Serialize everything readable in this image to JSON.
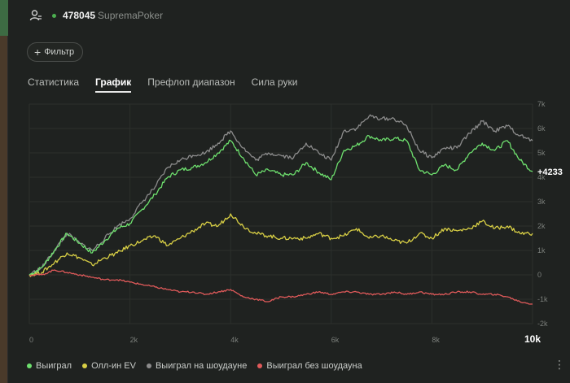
{
  "header": {
    "player_id": "478045",
    "site": "SupremaPoker"
  },
  "toolbar": {
    "filter_label": "Фильтр"
  },
  "tabs": [
    {
      "label": "Статистика",
      "active": false
    },
    {
      "label": "График",
      "active": true
    },
    {
      "label": "Префлоп диапазон",
      "active": false
    },
    {
      "label": "Сила руки",
      "active": false
    }
  ],
  "chart_data": {
    "type": "line",
    "x_ticks": [
      "0",
      "2k",
      "4k",
      "6k",
      "8k",
      "10k"
    ],
    "y_ticks": [
      "-2k",
      "-1k",
      "0",
      "1k",
      "2k",
      "3k",
      "4k",
      "5k",
      "6k",
      "7k"
    ],
    "xlim": [
      0,
      10000
    ],
    "ylim": [
      -2000,
      7000
    ],
    "end_label": "+4233",
    "x": [
      0,
      250,
      500,
      750,
      1000,
      1250,
      1500,
      1750,
      2000,
      2250,
      2500,
      2750,
      3000,
      3250,
      3500,
      3750,
      4000,
      4250,
      4500,
      4750,
      5000,
      5250,
      5500,
      5750,
      6000,
      6250,
      6500,
      6750,
      7000,
      7250,
      7500,
      7750,
      8000,
      8250,
      8500,
      8750,
      9000,
      9250,
      9500,
      9750,
      10000
    ],
    "series": [
      {
        "name": "Выиграл",
        "color": "#6ee06e",
        "values": [
          0,
          300,
          1000,
          1700,
          1300,
          900,
          1400,
          1900,
          2100,
          2700,
          3300,
          4000,
          4300,
          4400,
          4600,
          5000,
          5500,
          4800,
          4100,
          4300,
          4100,
          4100,
          4600,
          4200,
          3900,
          5100,
          5300,
          5700,
          5500,
          5600,
          5500,
          4300,
          4100,
          4500,
          4300,
          5000,
          5400,
          5100,
          5500,
          4700,
          4233
        ]
      },
      {
        "name": "Олл-ин EV",
        "color": "#d8cf45",
        "values": [
          0,
          100,
          500,
          900,
          700,
          400,
          700,
          900,
          1200,
          1400,
          1600,
          1200,
          1500,
          1800,
          2100,
          2000,
          2500,
          2000,
          1700,
          1600,
          1500,
          1500,
          1500,
          1700,
          1500,
          1600,
          1900,
          1500,
          1600,
          1400,
          1300,
          1700,
          1500,
          1900,
          1800,
          1900,
          2200,
          1900,
          2000,
          1700,
          1700
        ]
      },
      {
        "name": "Выиграл на шоудауне",
        "color": "#8c8c8c",
        "values": [
          0,
          300,
          1000,
          1700,
          1300,
          1000,
          1500,
          2000,
          2300,
          3000,
          3600,
          4400,
          4700,
          4900,
          5000,
          5400,
          5900,
          5200,
          4700,
          5000,
          4900,
          4800,
          5400,
          5000,
          4700,
          5900,
          6000,
          6500,
          6400,
          6400,
          6100,
          5100,
          4800,
          5200,
          5200,
          5800,
          6300,
          5900,
          6100,
          5700,
          5500
        ]
      },
      {
        "name": "Выиграл без шоудауна",
        "color": "#e05a5a",
        "values": [
          0,
          0,
          200,
          100,
          0,
          -100,
          -200,
          -200,
          -300,
          -400,
          -500,
          -600,
          -700,
          -700,
          -800,
          -700,
          -600,
          -900,
          -1000,
          -1100,
          -900,
          -900,
          -800,
          -700,
          -800,
          -700,
          -700,
          -800,
          -800,
          -700,
          -800,
          -700,
          -800,
          -800,
          -700,
          -700,
          -800,
          -800,
          -900,
          -1100,
          -1200
        ]
      }
    ]
  }
}
